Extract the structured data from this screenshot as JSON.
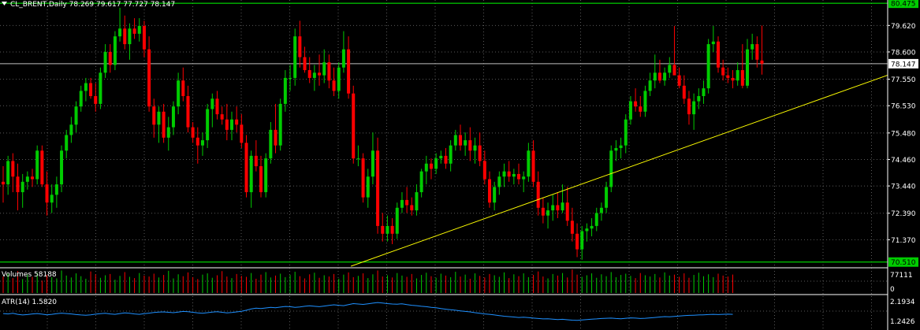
{
  "header": {
    "arrow_icon": "triangle-down-icon",
    "symbol_text": "CL_BRENT,Daily  78.269 79.617 77.727 78.147"
  },
  "colors": {
    "background": "#000000",
    "grid": "#5a5a5a",
    "bull": "#00cc00",
    "bear": "#ff0000",
    "level_line": "#00ff00",
    "price_line": "#c0c0c0",
    "trendline": "#ffff00",
    "atr_line": "#1e90ff",
    "level_label_bg": "#00cc00",
    "level_label_fg": "#000000",
    "price_label_bg": "#ffffff",
    "price_label_fg": "#000000"
  },
  "chart_data": {
    "type": "candlestick",
    "symbol": "CL_BRENT",
    "timeframe": "Daily",
    "ohlc_header": {
      "open": 78.269,
      "high": 79.617,
      "low": 77.727,
      "close": 78.147
    },
    "price_axis_ticks": [
      79.62,
      78.6,
      77.55,
      76.53,
      75.48,
      74.46,
      73.44,
      72.39,
      71.37
    ],
    "price_axis_labels": [
      "79.620",
      "78.600",
      "77.550",
      "76.530",
      "75.480",
      "74.460",
      "73.440",
      "72.390",
      "71.370"
    ],
    "ylim": [
      70.35,
      80.6
    ],
    "horizontal_levels": [
      {
        "value": 80.475,
        "label": "80.475"
      },
      {
        "value": 70.51,
        "label": "70.510"
      }
    ],
    "current_price": {
      "value": 78.147,
      "label": "78.147"
    },
    "trendline": {
      "start": {
        "bar": 71.5,
        "price": 70.35
      },
      "end": {
        "bar": 154,
        "price": 75.85
      }
    },
    "candles": [
      [
        73.6,
        74.2,
        72.8,
        73.5
      ],
      [
        73.5,
        74.6,
        73.1,
        74.4
      ],
      [
        74.4,
        74.7,
        73.2,
        73.8
      ],
      [
        73.8,
        74.3,
        72.5,
        73.2
      ],
      [
        73.2,
        73.9,
        72.6,
        73.6
      ],
      [
        73.6,
        74.0,
        73.3,
        73.8
      ],
      [
        73.8,
        74.1,
        73.4,
        73.7
      ],
      [
        73.7,
        75.0,
        73.5,
        74.8
      ],
      [
        74.8,
        75.0,
        73.4,
        73.5
      ],
      [
        73.5,
        74.0,
        72.3,
        72.8
      ],
      [
        72.8,
        73.5,
        72.4,
        73.1
      ],
      [
        73.1,
        73.8,
        72.6,
        73.5
      ],
      [
        73.5,
        75.0,
        73.2,
        74.8
      ],
      [
        74.8,
        75.6,
        74.5,
        75.4
      ],
      [
        75.4,
        76.1,
        75.1,
        75.8
      ],
      [
        75.8,
        76.7,
        75.5,
        76.5
      ],
      [
        76.5,
        77.3,
        76.3,
        77.1
      ],
      [
        77.1,
        77.6,
        76.7,
        77.4
      ],
      [
        77.4,
        77.6,
        76.8,
        76.9
      ],
      [
        76.9,
        77.4,
        76.3,
        76.6
      ],
      [
        76.6,
        78.0,
        76.4,
        77.8
      ],
      [
        77.8,
        78.9,
        77.6,
        78.6
      ],
      [
        78.6,
        78.9,
        77.8,
        78.1
      ],
      [
        78.1,
        79.4,
        77.9,
        79.2
      ],
      [
        79.2,
        80.3,
        79.0,
        79.5
      ],
      [
        79.5,
        80.0,
        78.7,
        78.9
      ],
      [
        78.9,
        79.7,
        78.3,
        79.5
      ],
      [
        79.5,
        79.9,
        79.1,
        79.3
      ],
      [
        79.3,
        79.9,
        79.0,
        79.6
      ],
      [
        79.6,
        79.8,
        78.4,
        78.7
      ],
      [
        78.7,
        79.2,
        76.3,
        76.5
      ],
      [
        76.5,
        76.8,
        75.3,
        75.8
      ],
      [
        75.8,
        76.5,
        75.1,
        76.3
      ],
      [
        76.3,
        76.6,
        75.1,
        75.3
      ],
      [
        75.3,
        76.1,
        74.8,
        75.7
      ],
      [
        75.7,
        76.7,
        75.4,
        76.5
      ],
      [
        76.5,
        77.8,
        76.2,
        77.5
      ],
      [
        77.5,
        78.0,
        76.7,
        76.9
      ],
      [
        76.9,
        77.3,
        75.5,
        75.7
      ],
      [
        75.7,
        75.9,
        75.1,
        75.3
      ],
      [
        75.3,
        75.7,
        74.3,
        75.0
      ],
      [
        75.0,
        75.5,
        74.6,
        75.2
      ],
      [
        75.2,
        76.6,
        74.9,
        76.4
      ],
      [
        76.4,
        77.0,
        75.7,
        76.8
      ],
      [
        76.8,
        77.1,
        76.0,
        76.2
      ],
      [
        76.2,
        76.5,
        75.8,
        76.0
      ],
      [
        76.0,
        76.6,
        75.2,
        75.6
      ],
      [
        75.6,
        76.3,
        75.2,
        76.0
      ],
      [
        76.0,
        76.5,
        75.5,
        75.8
      ],
      [
        75.8,
        76.2,
        74.9,
        75.1
      ],
      [
        75.1,
        75.4,
        73.0,
        73.2
      ],
      [
        73.2,
        74.8,
        72.6,
        74.6
      ],
      [
        74.6,
        75.2,
        74.0,
        74.2
      ],
      [
        74.2,
        74.6,
        73.0,
        73.2
      ],
      [
        73.2,
        74.7,
        73.0,
        74.5
      ],
      [
        74.5,
        75.9,
        74.3,
        75.6
      ],
      [
        75.6,
        76.6,
        74.7,
        75.0
      ],
      [
        75.0,
        76.8,
        74.8,
        76.6
      ],
      [
        76.6,
        77.9,
        76.3,
        77.6
      ],
      [
        77.6,
        78.1,
        77.1,
        77.6
      ],
      [
        77.6,
        79.5,
        77.3,
        79.2
      ],
      [
        79.2,
        79.8,
        78.0,
        78.4
      ],
      [
        78.4,
        78.8,
        77.8,
        77.9
      ],
      [
        77.9,
        78.4,
        77.4,
        77.6
      ],
      [
        77.6,
        78.1,
        77.1,
        77.8
      ],
      [
        77.8,
        78.5,
        77.3,
        77.7
      ],
      [
        77.7,
        78.7,
        77.4,
        78.2
      ],
      [
        78.2,
        78.5,
        77.2,
        77.5
      ],
      [
        77.5,
        78.0,
        76.9,
        77.1
      ],
      [
        77.1,
        78.2,
        76.8,
        78.0
      ],
      [
        78.0,
        79.4,
        77.8,
        78.7
      ],
      [
        78.7,
        79.2,
        76.8,
        77.0
      ],
      [
        77.0,
        77.3,
        74.3,
        74.5
      ],
      [
        74.5,
        75.0,
        74.2,
        74.5
      ],
      [
        74.5,
        74.7,
        72.8,
        73.0
      ],
      [
        73.0,
        74.1,
        72.6,
        73.8
      ],
      [
        73.8,
        75.5,
        73.5,
        74.8
      ],
      [
        74.8,
        75.3,
        71.6,
        71.9
      ],
      [
        71.9,
        72.4,
        71.3,
        71.6
      ],
      [
        71.6,
        72.3,
        71.3,
        71.9
      ],
      [
        71.9,
        72.2,
        71.2,
        71.6
      ],
      [
        71.6,
        72.8,
        71.4,
        72.6
      ],
      [
        72.6,
        73.2,
        72.4,
        72.9
      ],
      [
        72.9,
        73.4,
        72.4,
        72.7
      ],
      [
        72.7,
        73.0,
        72.3,
        72.5
      ],
      [
        72.5,
        73.5,
        72.3,
        73.2
      ],
      [
        73.2,
        74.1,
        73.0,
        74.0
      ],
      [
        74.0,
        74.6,
        73.5,
        74.3
      ],
      [
        74.3,
        74.5,
        73.7,
        74.1
      ],
      [
        74.1,
        74.7,
        73.9,
        74.5
      ],
      [
        74.5,
        74.8,
        74.3,
        74.6
      ],
      [
        74.6,
        74.9,
        74.1,
        74.3
      ],
      [
        74.3,
        75.2,
        74.0,
        75.0
      ],
      [
        75.0,
        75.6,
        74.8,
        75.4
      ],
      [
        75.4,
        75.8,
        74.8,
        75.0
      ],
      [
        75.0,
        75.5,
        74.6,
        75.2
      ],
      [
        75.2,
        75.7,
        74.4,
        74.8
      ],
      [
        74.8,
        75.3,
        74.3,
        75.0
      ],
      [
        75.0,
        75.5,
        74.2,
        74.4
      ],
      [
        74.4,
        74.8,
        73.5,
        73.7
      ],
      [
        73.7,
        74.0,
        72.6,
        72.8
      ],
      [
        72.8,
        73.6,
        72.5,
        73.4
      ],
      [
        73.4,
        74.0,
        73.1,
        73.8
      ],
      [
        73.8,
        74.3,
        73.4,
        74.0
      ],
      [
        74.0,
        74.4,
        73.6,
        73.8
      ],
      [
        73.8,
        74.1,
        73.5,
        73.9
      ],
      [
        73.9,
        74.3,
        73.5,
        73.7
      ],
      [
        73.7,
        74.0,
        73.2,
        73.8
      ],
      [
        73.8,
        75.1,
        73.6,
        74.8
      ],
      [
        74.8,
        75.2,
        73.4,
        73.6
      ],
      [
        73.6,
        74.0,
        72.3,
        72.6
      ],
      [
        72.6,
        73.0,
        72.0,
        72.3
      ],
      [
        72.3,
        72.8,
        71.8,
        72.5
      ],
      [
        72.5,
        73.1,
        72.1,
        72.7
      ],
      [
        72.7,
        73.2,
        72.2,
        72.5
      ],
      [
        72.5,
        73.5,
        72.4,
        72.8
      ],
      [
        72.8,
        73.4,
        71.9,
        72.1
      ],
      [
        72.1,
        72.6,
        71.3,
        71.6
      ],
      [
        71.6,
        72.0,
        70.7,
        71.0
      ],
      [
        71.0,
        71.9,
        70.6,
        71.7
      ],
      [
        71.7,
        72.0,
        71.3,
        71.8
      ],
      [
        71.8,
        72.2,
        71.5,
        71.9
      ],
      [
        71.9,
        72.6,
        71.7,
        72.4
      ],
      [
        72.4,
        72.8,
        72.1,
        72.6
      ],
      [
        72.6,
        73.6,
        72.4,
        73.4
      ],
      [
        73.4,
        75.0,
        73.2,
        74.8
      ],
      [
        74.8,
        75.2,
        74.4,
        74.9
      ],
      [
        74.9,
        75.3,
        74.5,
        75.0
      ],
      [
        75.0,
        76.2,
        74.7,
        76.0
      ],
      [
        76.0,
        76.9,
        75.8,
        76.7
      ],
      [
        76.7,
        77.2,
        76.3,
        76.5
      ],
      [
        76.5,
        76.9,
        76.1,
        76.3
      ],
      [
        76.3,
        77.3,
        76.1,
        77.1
      ],
      [
        77.1,
        77.8,
        76.9,
        77.5
      ],
      [
        77.5,
        78.5,
        77.2,
        77.8
      ],
      [
        77.8,
        78.3,
        77.4,
        77.5
      ],
      [
        77.5,
        78.0,
        77.3,
        77.8
      ],
      [
        77.8,
        78.4,
        77.6,
        78.1
      ],
      [
        78.1,
        79.6,
        77.8,
        77.7
      ],
      [
        77.7,
        78.0,
        77.2,
        77.3
      ],
      [
        77.3,
        77.7,
        76.6,
        76.8
      ],
      [
        76.8,
        77.1,
        75.8,
        76.2
      ],
      [
        76.2,
        77.0,
        75.6,
        76.7
      ],
      [
        76.7,
        77.2,
        76.4,
        76.9
      ],
      [
        76.9,
        77.5,
        76.6,
        77.2
      ],
      [
        77.2,
        79.1,
        77.0,
        78.9
      ],
      [
        78.9,
        79.6,
        78.6,
        79.0
      ],
      [
        79.0,
        79.2,
        77.8,
        78.0
      ],
      [
        78.0,
        78.3,
        77.5,
        77.7
      ],
      [
        77.7,
        78.0,
        77.4,
        77.6
      ],
      [
        77.6,
        77.9,
        77.2,
        77.5
      ],
      [
        77.5,
        78.2,
        77.3,
        77.9
      ],
      [
        77.9,
        78.9,
        77.2,
        77.3
      ],
      [
        77.3,
        79.1,
        77.2,
        78.7
      ],
      [
        78.7,
        79.3,
        78.3,
        78.9
      ],
      [
        78.9,
        79.2,
        78.0,
        78.3
      ],
      [
        78.269,
        79.617,
        77.727,
        78.147
      ]
    ],
    "volume_panel": {
      "label": "Volumes 58188",
      "axis_labels": [
        "77111",
        "0"
      ],
      "axis_max": 77111,
      "values": [
        52000,
        61000,
        47000,
        69000,
        44000,
        58000,
        51000,
        64000,
        39000,
        57000,
        50000,
        46000,
        71000,
        55000,
        49000,
        62000,
        53000,
        45000,
        68000,
        59000,
        48000,
        56000,
        60000,
        42000,
        54000,
        66000,
        51000,
        47000,
        63000,
        55000,
        52000,
        61000,
        49000,
        57000,
        70000,
        46000,
        59000,
        53000,
        65000,
        50000,
        44000,
        58000,
        62000,
        48000,
        56000,
        69000,
        52000,
        47000,
        60000,
        54000,
        51000,
        63000,
        45000,
        58000,
        66000,
        49000,
        55000,
        61000,
        50000,
        57000,
        67000,
        53000,
        46000,
        59000,
        64000,
        48000,
        56000,
        52000,
        60000,
        45000,
        58000,
        65000,
        50000,
        54000,
        62000,
        47000,
        59000,
        71000,
        52000,
        56000,
        49000,
        63000,
        55000,
        51000,
        60000,
        46000,
        57000,
        64000,
        53000,
        48000,
        61000,
        55000,
        50000,
        67000,
        52000,
        58000,
        45000,
        62000,
        54000,
        49000,
        60000,
        56000,
        51000,
        65000,
        47000,
        59000,
        53000,
        62000,
        50000,
        57000,
        68000,
        52000,
        46000,
        60000,
        55000,
        63000,
        49000,
        74000,
        58000,
        51000,
        56000,
        62000,
        48000,
        59000,
        53000,
        66000,
        50000,
        57000,
        61000,
        54000,
        47000,
        63000,
        56000,
        52000,
        60000,
        49000,
        65000,
        55000,
        58000,
        51000,
        62000,
        48000,
        57000,
        64000,
        53000,
        59000,
        50000,
        61000,
        55000,
        52000,
        58188
      ]
    },
    "atr_panel": {
      "label": "ATR(14) 1.5820",
      "axis_labels": [
        "2.1934",
        "1.2426"
      ],
      "axis_max": 2.1934,
      "axis_min": 1.2426,
      "values": [
        1.62,
        1.6,
        1.63,
        1.58,
        1.55,
        1.57,
        1.6,
        1.62,
        1.59,
        1.56,
        1.58,
        1.61,
        1.64,
        1.62,
        1.6,
        1.57,
        1.55,
        1.54,
        1.56,
        1.59,
        1.61,
        1.63,
        1.6,
        1.58,
        1.62,
        1.65,
        1.63,
        1.6,
        1.58,
        1.61,
        1.64,
        1.67,
        1.69,
        1.7,
        1.68,
        1.66,
        1.69,
        1.72,
        1.71,
        1.68,
        1.65,
        1.63,
        1.66,
        1.69,
        1.71,
        1.68,
        1.65,
        1.67,
        1.7,
        1.73,
        1.78,
        1.84,
        1.88,
        1.86,
        1.89,
        1.92,
        1.9,
        1.93,
        1.96,
        1.95,
        1.92,
        1.94,
        1.97,
        1.99,
        1.97,
        1.95,
        1.98,
        2.01,
        2.04,
        2.02,
        2.0,
        2.05,
        2.1,
        2.08,
        2.06,
        2.09,
        2.12,
        2.15,
        2.13,
        2.1,
        2.08,
        2.07,
        2.09,
        2.05,
        2.02,
        2.0,
        1.97,
        1.95,
        1.92,
        1.9,
        1.86,
        1.83,
        1.8,
        1.78,
        1.75,
        1.72,
        1.7,
        1.66,
        1.63,
        1.6,
        1.58,
        1.55,
        1.52,
        1.49,
        1.47,
        1.45,
        1.43,
        1.44,
        1.42,
        1.4,
        1.38,
        1.36,
        1.37,
        1.35,
        1.33,
        1.34,
        1.32,
        1.3,
        1.29,
        1.31,
        1.33,
        1.35,
        1.36,
        1.38,
        1.39,
        1.4,
        1.38,
        1.37,
        1.39,
        1.41,
        1.4,
        1.38,
        1.39,
        1.41,
        1.43,
        1.45,
        1.47,
        1.46,
        1.48,
        1.5,
        1.52,
        1.53,
        1.54,
        1.55,
        1.56,
        1.57,
        1.58,
        1.57,
        1.58,
        1.59,
        1.582
      ]
    }
  }
}
